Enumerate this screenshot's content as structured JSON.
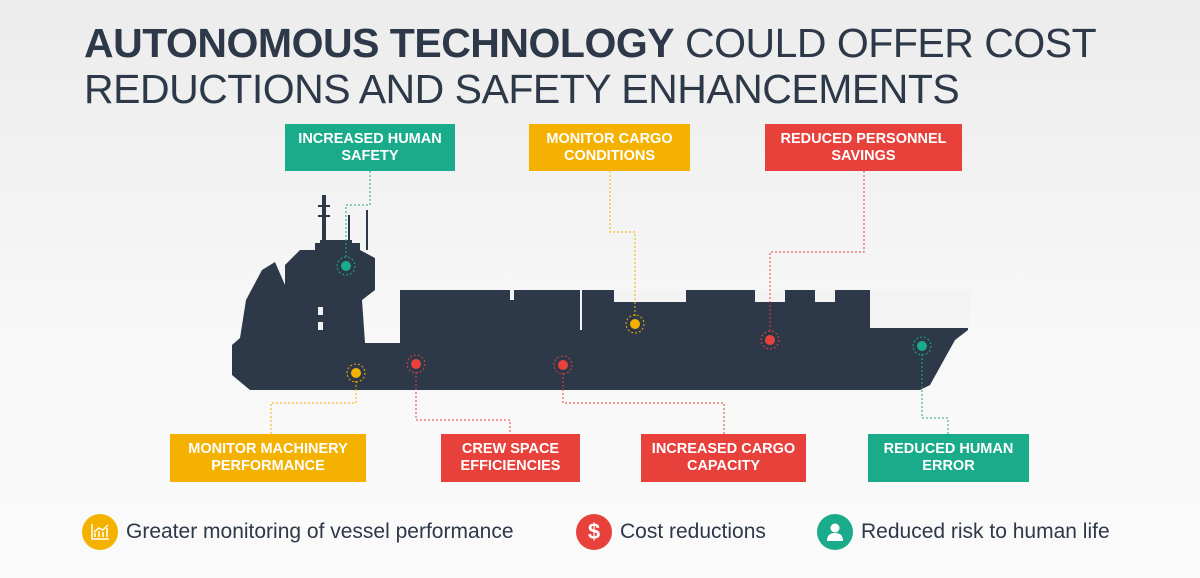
{
  "title": {
    "bold": "AUTONOMOUS TECHNOLOGY",
    "rest_line1": " COULD OFFER COST",
    "line2": "REDUCTIONS AND SAFETY ENHANCEMENTS"
  },
  "colors": {
    "green": "#1aab8a",
    "yellow": "#f5b100",
    "red": "#e8413c",
    "ship": "#2d3848"
  },
  "callouts": [
    {
      "line1": "INCREASED HUMAN",
      "line2": "SAFETY",
      "category": "green"
    },
    {
      "line1": "MONITOR CARGO",
      "line2": "CONDITIONS",
      "category": "yellow"
    },
    {
      "line1": "REDUCED PERSONNEL",
      "line2": "SAVINGS",
      "category": "red"
    },
    {
      "line1": "MONITOR MACHINERY",
      "line2": "PERFORMANCE",
      "category": "yellow"
    },
    {
      "line1": "CREW SPACE",
      "line2": "EFFICIENCIES",
      "category": "red"
    },
    {
      "line1": "INCREASED CARGO",
      "line2": "CAPACITY",
      "category": "red"
    },
    {
      "line1": "REDUCED HUMAN",
      "line2": "ERROR",
      "category": "green"
    }
  ],
  "legend": [
    {
      "label": "Greater monitoring of  vessel performance",
      "icon": "chart-icon",
      "color": "#f5b100"
    },
    {
      "label": "Cost reductions",
      "icon": "dollar-icon",
      "glyph": "$",
      "color": "#e8413c"
    },
    {
      "label": "Reduced risk to human life",
      "icon": "person-icon",
      "color": "#1aab8a"
    }
  ]
}
